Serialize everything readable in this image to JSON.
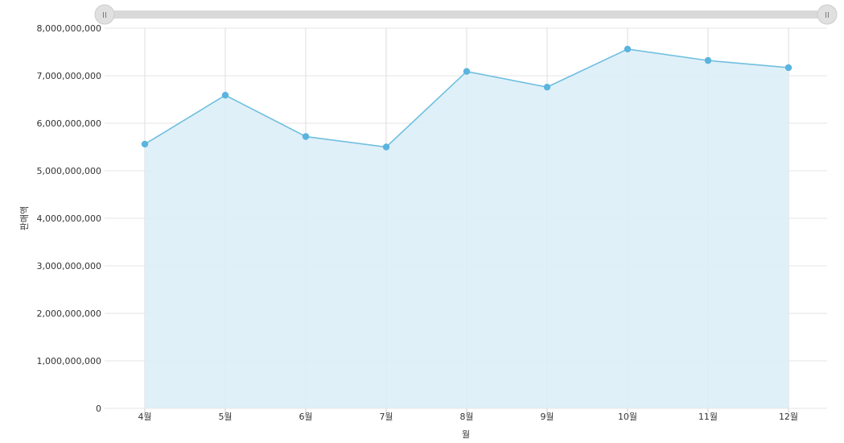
{
  "chart_data": {
    "type": "area",
    "xlabel": "월",
    "ylabel": "판매액",
    "categories": [
      "4월",
      "5월",
      "6월",
      "7월",
      "8월",
      "9월",
      "10월",
      "11월",
      "12월"
    ],
    "series": [
      {
        "values": [
          5560000000,
          6590000000,
          5720000000,
          5500000000,
          7090000000,
          6760000000,
          7560000000,
          7320000000,
          7170000000
        ]
      }
    ],
    "ylim": [
      0,
      8000000000
    ],
    "yticks": [
      "0",
      "1,000,000,000",
      "2,000,000,000",
      "3,000,000,000",
      "4,000,000,000",
      "5,000,000,000",
      "6,000,000,000",
      "7,000,000,000",
      "8,000,000,000"
    ],
    "grid": true,
    "colors": {
      "line": "#6fbfe0",
      "fill": "#ddeef7",
      "point": "#5ab4de"
    }
  },
  "scrollbar": {
    "left_handle_glyph": "II",
    "right_handle_glyph": "II",
    "range": [
      0,
      1
    ]
  }
}
